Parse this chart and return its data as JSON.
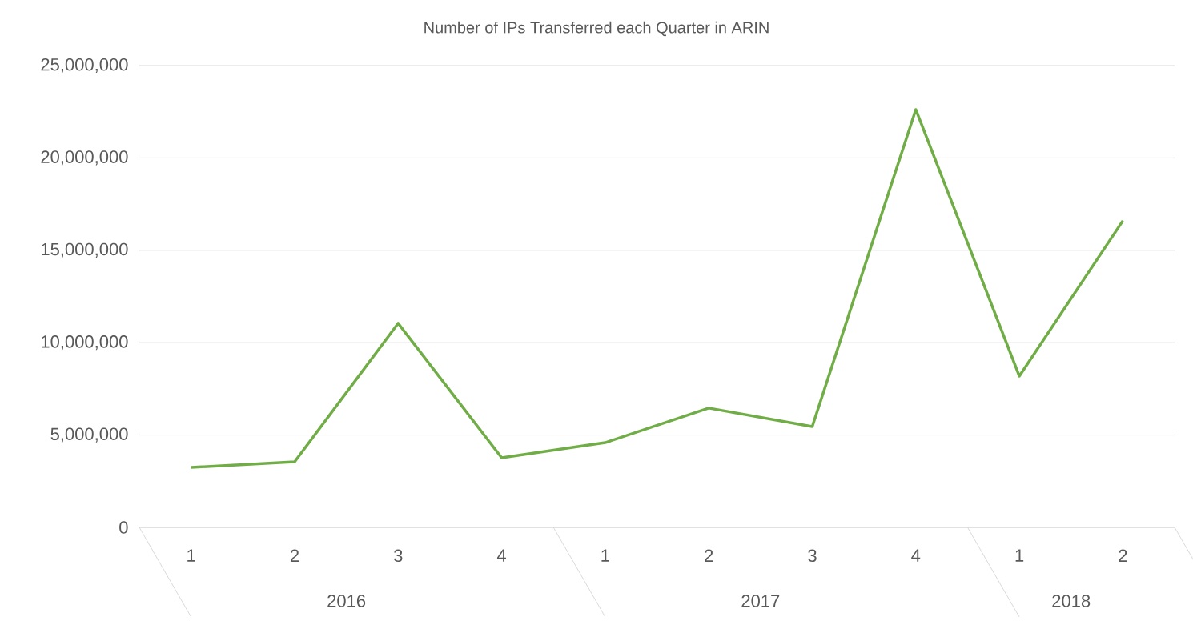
{
  "chart_data": {
    "type": "line",
    "title": "Number of IPs Transferred each Quarter in ARIN",
    "categories": [
      "1",
      "2",
      "3",
      "4",
      "1",
      "2",
      "3",
      "4",
      "1",
      "2"
    ],
    "series": [
      {
        "color": "#70ad47",
        "values": [
          3250000,
          3550000,
          11050000,
          3770000,
          4590000,
          6460000,
          5460000,
          22620000,
          8190000,
          16600000
        ]
      }
    ],
    "ylim": [
      0,
      25000000
    ],
    "yticks": [
      0,
      {
        "value": 5000000,
        "label": "5,000,000"
      },
      {
        "value": 10000000,
        "label": "10,000,000"
      },
      {
        "value": 15000000,
        "label": "15,000,000"
      },
      {
        "value": 20000000,
        "label": "20,000,000"
      },
      {
        "value": 25000000,
        "label": "25,000,000"
      }
    ],
    "grid": "y",
    "marker": "none",
    "line_style": "solid",
    "annotations": [
      "2016",
      "2017",
      "2018"
    ]
  }
}
